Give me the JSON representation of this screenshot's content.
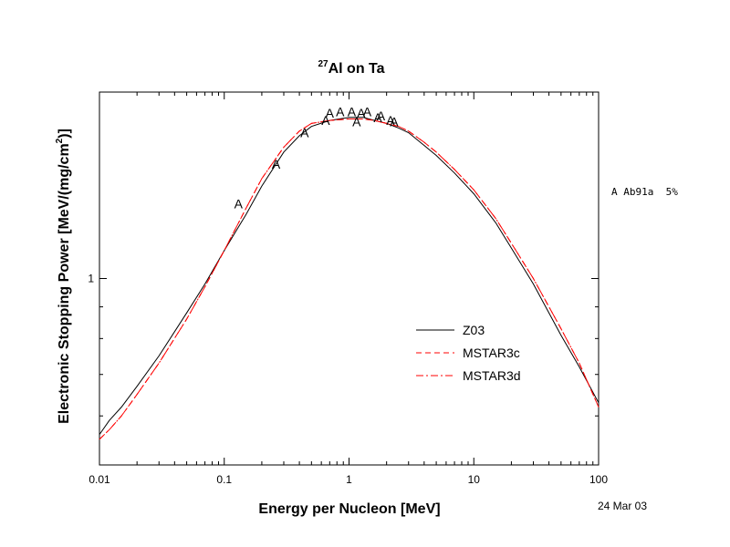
{
  "chart_data": {
    "type": "line",
    "title_sup": "27",
    "title_main": "Al on Ta",
    "xlabel": "Energy per Nucleon [MeV]",
    "ylabel_main": "Electronic Stopping Power [MeV/(mg/cm",
    "ylabel_sup": "2",
    "ylabel_end": ")]",
    "x_scale": "log",
    "y_scale": "log",
    "xlim": [
      0.01,
      100
    ],
    "ylim": [
      0.5,
      2.0
    ],
    "x_ticks": [
      {
        "value": 0.01,
        "label": "0.01"
      },
      {
        "value": 0.1,
        "label": "0.1"
      },
      {
        "value": 1,
        "label": "1"
      },
      {
        "value": 10,
        "label": "10"
      },
      {
        "value": 100,
        "label": "100"
      }
    ],
    "y_ticks": [
      {
        "value": 1,
        "label": "1"
      }
    ],
    "series": [
      {
        "name": "Z03",
        "color": "#000000",
        "dash": "solid",
        "x": [
          0.01,
          0.012,
          0.015,
          0.02,
          0.03,
          0.05,
          0.07,
          0.1,
          0.15,
          0.2,
          0.3,
          0.4,
          0.5,
          0.7,
          1.0,
          1.3,
          1.6,
          2.0,
          2.5,
          3.0,
          4.0,
          5.0,
          7.0,
          10,
          15,
          20,
          30,
          50,
          70,
          100
        ],
        "y": [
          0.56,
          0.59,
          0.62,
          0.67,
          0.75,
          0.88,
          0.98,
          1.11,
          1.27,
          1.41,
          1.6,
          1.7,
          1.76,
          1.8,
          1.82,
          1.82,
          1.8,
          1.78,
          1.75,
          1.72,
          1.64,
          1.58,
          1.48,
          1.37,
          1.23,
          1.12,
          0.98,
          0.81,
          0.72,
          0.63
        ]
      },
      {
        "name": "MSTAR3c",
        "color": "#ff0000",
        "dash": "dash",
        "x": [
          0.01,
          0.012,
          0.015,
          0.02,
          0.03,
          0.05,
          0.07,
          0.1,
          0.15,
          0.2,
          0.3,
          0.4,
          0.5,
          0.7,
          1.0,
          1.3,
          1.6,
          2.0,
          2.5,
          3.0,
          4.0,
          5.0,
          7.0,
          10,
          15,
          20,
          30,
          50,
          70,
          100
        ],
        "y": [
          0.55,
          0.57,
          0.6,
          0.65,
          0.73,
          0.86,
          0.97,
          1.11,
          1.3,
          1.45,
          1.63,
          1.73,
          1.78,
          1.8,
          1.81,
          1.81,
          1.8,
          1.78,
          1.76,
          1.73,
          1.66,
          1.6,
          1.5,
          1.39,
          1.25,
          1.14,
          1.0,
          0.83,
          0.73,
          0.62
        ]
      },
      {
        "name": "MSTAR3d",
        "color": "#ff0000",
        "dash": "dashdot",
        "x": [
          0.01,
          0.012,
          0.015,
          0.02,
          0.03,
          0.05,
          0.07,
          0.1,
          0.15,
          0.2,
          0.3,
          0.4,
          0.5,
          0.7,
          1.0,
          1.3,
          1.6,
          2.0,
          2.5,
          3.0,
          4.0,
          5.0,
          7.0,
          10,
          15,
          20,
          30,
          50,
          70,
          100
        ],
        "y": [
          0.55,
          0.57,
          0.6,
          0.65,
          0.73,
          0.86,
          0.97,
          1.11,
          1.3,
          1.45,
          1.63,
          1.73,
          1.78,
          1.8,
          1.81,
          1.81,
          1.8,
          1.78,
          1.76,
          1.73,
          1.66,
          1.6,
          1.5,
          1.39,
          1.25,
          1.14,
          1.0,
          0.83,
          0.73,
          0.62
        ]
      }
    ],
    "experimental": {
      "marker": "A",
      "legend_label": "A Ab91a  5%",
      "points": [
        {
          "x": 0.13,
          "y": 1.32
        },
        {
          "x": 0.26,
          "y": 1.53
        },
        {
          "x": 0.44,
          "y": 1.72
        },
        {
          "x": 0.65,
          "y": 1.8
        },
        {
          "x": 0.7,
          "y": 1.85
        },
        {
          "x": 0.85,
          "y": 1.86
        },
        {
          "x": 1.05,
          "y": 1.86
        },
        {
          "x": 1.15,
          "y": 1.79
        },
        {
          "x": 1.25,
          "y": 1.85
        },
        {
          "x": 1.4,
          "y": 1.86
        },
        {
          "x": 1.7,
          "y": 1.82
        },
        {
          "x": 1.8,
          "y": 1.83
        },
        {
          "x": 2.15,
          "y": 1.8
        },
        {
          "x": 2.3,
          "y": 1.79
        }
      ]
    },
    "legend_position": "lower-right",
    "grid": false,
    "date_stamp": "24 Mar 03"
  }
}
